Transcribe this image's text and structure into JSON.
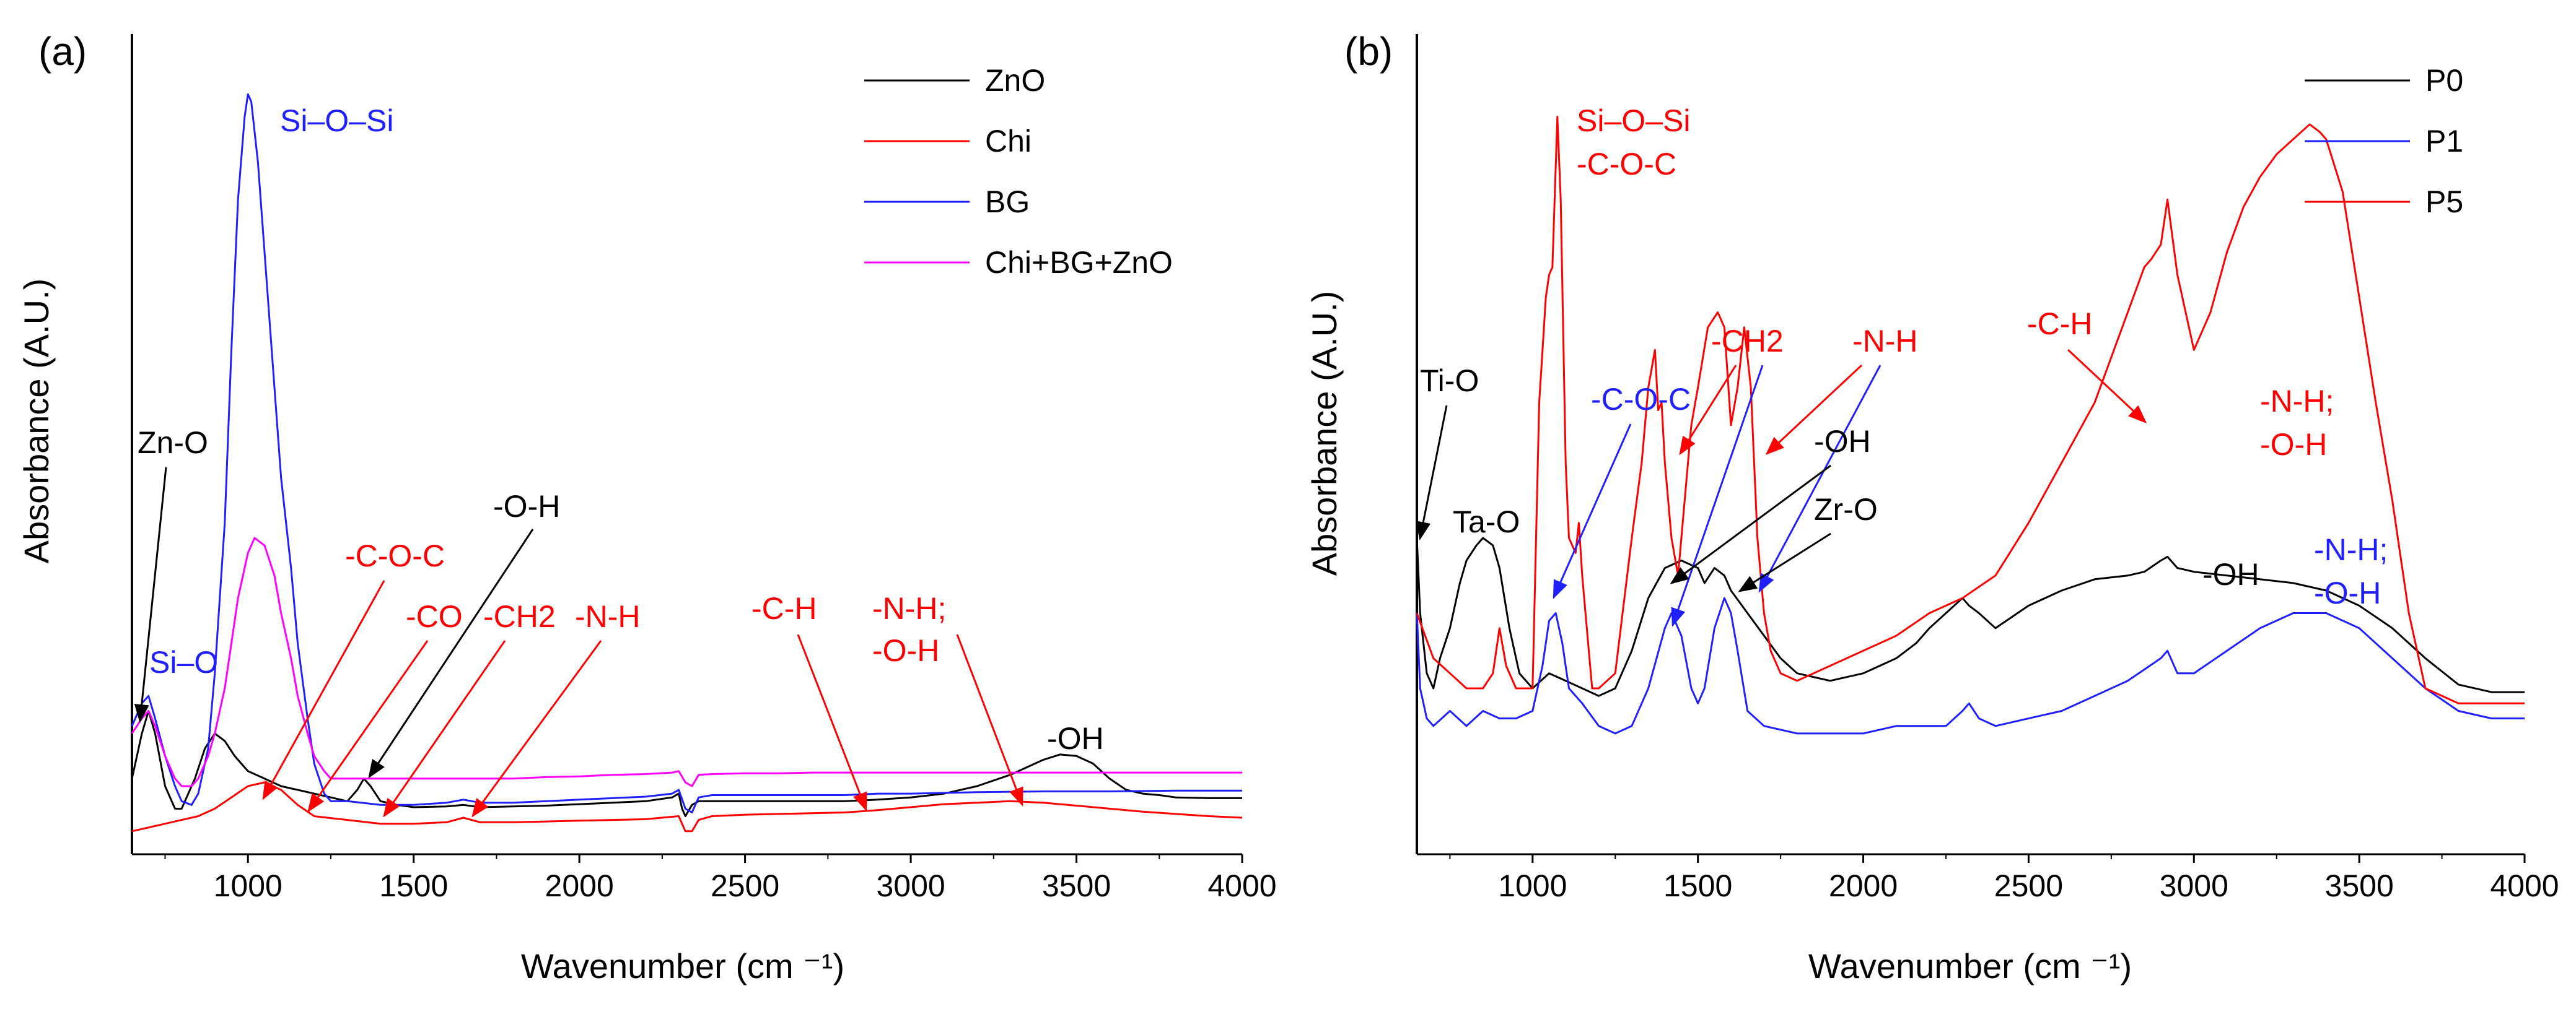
{
  "colors": {
    "black": "#000000",
    "red": "#ff0000",
    "blue": "#2020ff",
    "magenta": "#ff00ff"
  },
  "chart_data": [
    {
      "type": "line",
      "panel_label": "(a)",
      "xlabel": "Wavenumber (cm ⁻¹)",
      "ylabel": "Absorbance (A.U.)",
      "xlim": [
        650,
        4000
      ],
      "ylim": [
        0,
        100
      ],
      "xticks": [
        "1000",
        "1500",
        "2000",
        "2500",
        "3000",
        "3500",
        "4000"
      ],
      "legend_position": "top-right",
      "series": [
        {
          "name": "ZnO",
          "color": "#000000",
          "x": [
            650,
            680,
            700,
            720,
            750,
            780,
            800,
            840,
            870,
            900,
            930,
            960,
            1000,
            1050,
            1100,
            1150,
            1200,
            1250,
            1300,
            1330,
            1350,
            1370,
            1400,
            1450,
            1500,
            1600,
            1650,
            1700,
            1800,
            1900,
            2000,
            2100,
            2200,
            2280,
            2300,
            2310,
            2320,
            2340,
            2360,
            2400,
            2500,
            2600,
            2700,
            2800,
            2900,
            3000,
            3100,
            3200,
            3300,
            3400,
            3450,
            3500,
            3550,
            3600,
            3650,
            3700,
            3750,
            3800,
            3900,
            4000
          ],
          "y": [
            8,
            14,
            17,
            14,
            7,
            4,
            4,
            8,
            12,
            14,
            13,
            11,
            9,
            8,
            7,
            6.5,
            6,
            5.5,
            5,
            6.5,
            8,
            7,
            5,
            4.5,
            4.2,
            4.3,
            4.5,
            4.2,
            4.3,
            4.4,
            4.6,
            4.8,
            5,
            5.5,
            6,
            4,
            3,
            4.5,
            5,
            5,
            5,
            5,
            5,
            5,
            5.2,
            5.5,
            6,
            7,
            8.5,
            10.5,
            11.2,
            11,
            10,
            8,
            6.5,
            6,
            5.8,
            5.5,
            5.4,
            5.4
          ]
        },
        {
          "name": "Chi",
          "color": "#ff0000",
          "x": [
            650,
            700,
            750,
            800,
            850,
            900,
            950,
            1000,
            1050,
            1100,
            1150,
            1200,
            1300,
            1400,
            1500,
            1600,
            1650,
            1700,
            1800,
            1900,
            2000,
            2100,
            2200,
            2300,
            2320,
            2340,
            2360,
            2400,
            2500,
            2600,
            2700,
            2800,
            2900,
            3000,
            3100,
            3200,
            3300,
            3400,
            3500,
            3600,
            3700,
            3800,
            3900,
            4000
          ],
          "y": [
            1,
            1.5,
            2,
            2.5,
            3,
            4,
            5.5,
            7,
            7.5,
            6.5,
            4.5,
            3,
            2.5,
            2,
            2,
            2.2,
            2.8,
            2.2,
            2.2,
            2.3,
            2.4,
            2.5,
            2.6,
            3,
            1,
            1,
            2.5,
            3,
            3.2,
            3.3,
            3.4,
            3.5,
            3.8,
            4.2,
            4.6,
            4.8,
            5,
            4.8,
            4.4,
            4,
            3.6,
            3.3,
            3,
            2.8
          ]
        },
        {
          "name": "BG",
          "color": "#2020ff",
          "x": [
            650,
            680,
            700,
            720,
            750,
            780,
            800,
            830,
            850,
            880,
            900,
            930,
            950,
            970,
            990,
            1000,
            1010,
            1030,
            1050,
            1080,
            1100,
            1130,
            1150,
            1180,
            1200,
            1230,
            1250,
            1300,
            1400,
            1500,
            1600,
            1650,
            1700,
            1800,
            1900,
            2000,
            2100,
            2200,
            2280,
            2300,
            2320,
            2340,
            2360,
            2400,
            2500,
            2600,
            2700,
            2800,
            2900,
            3000,
            3200,
            3400,
            3600,
            3800,
            4000
          ],
          "y": [
            15,
            18,
            19,
            16,
            11,
            7,
            5,
            4.5,
            6,
            12,
            22,
            42,
            65,
            85,
            96,
            99,
            98,
            90,
            78,
            60,
            48,
            36,
            26,
            16,
            10,
            6,
            5,
            5,
            4.5,
            4.5,
            4.8,
            5.2,
            4.8,
            4.8,
            5,
            5.2,
            5.4,
            5.6,
            6,
            6.5,
            4,
            3.5,
            5.5,
            5.8,
            5.8,
            5.8,
            5.8,
            5.8,
            6,
            6,
            6.2,
            6.3,
            6.3,
            6.4,
            6.4
          ]
        },
        {
          "name": "Chi+BG+ZnO",
          "color": "#ff00ff",
          "x": [
            650,
            680,
            700,
            720,
            750,
            780,
            800,
            830,
            850,
            880,
            900,
            930,
            950,
            970,
            1000,
            1020,
            1050,
            1080,
            1100,
            1130,
            1150,
            1180,
            1200,
            1230,
            1250,
            1300,
            1400,
            1500,
            1600,
            1700,
            1800,
            1900,
            2000,
            2100,
            2200,
            2280,
            2300,
            2320,
            2340,
            2360,
            2400,
            2500,
            2600,
            2700,
            2800,
            2900,
            3000,
            3200,
            3400,
            3600,
            3800,
            4000
          ],
          "y": [
            14,
            16,
            17,
            15,
            11,
            8,
            7,
            7,
            8,
            11,
            14,
            20,
            26,
            32,
            38,
            40,
            39,
            35,
            30,
            24,
            19,
            14,
            11,
            9,
            8,
            8,
            8,
            8,
            8,
            8,
            8,
            8.2,
            8.3,
            8.5,
            8.6,
            8.8,
            9,
            7.5,
            7,
            8.5,
            8.6,
            8.7,
            8.7,
            8.8,
            8.8,
            8.8,
            8.8,
            8.8,
            8.8,
            8.8,
            8.8,
            8.8
          ]
        }
      ],
      "annotations": [
        {
          "text": "Zn-O",
          "color": "#000000"
        },
        {
          "text": "Si–O",
          "color": "#2020ff"
        },
        {
          "text": "Si–O–Si",
          "color": "#2020ff"
        },
        {
          "text": "-O-H",
          "color": "#000000"
        },
        {
          "text": "-C-O-C",
          "color": "#ff0000"
        },
        {
          "text": "-CO",
          "color": "#ff0000"
        },
        {
          "text": "-CH2",
          "color": "#ff0000"
        },
        {
          "text": "-N-H",
          "color": "#ff0000"
        },
        {
          "text": "-C-H",
          "color": "#ff0000"
        },
        {
          "text": "-N-H;",
          "color": "#ff0000"
        },
        {
          "text": "-O-H",
          "color": "#ff0000"
        },
        {
          "text": "-OH",
          "color": "#000000"
        }
      ]
    },
    {
      "type": "line",
      "panel_label": "(b)",
      "xlabel": "Wavenumber (cm ⁻¹)",
      "ylabel": "Absorbance (A.U.)",
      "xlim": [
        650,
        4000
      ],
      "ylim": [
        0,
        100
      ],
      "xticks": [
        "1000",
        "1500",
        "2000",
        "2500",
        "3000",
        "3500",
        "4000"
      ],
      "legend_position": "top-right",
      "series": [
        {
          "name": "P0",
          "color": "#000000",
          "x": [
            650,
            660,
            680,
            700,
            720,
            750,
            780,
            800,
            830,
            850,
            880,
            900,
            930,
            960,
            1000,
            1050,
            1100,
            1150,
            1200,
            1250,
            1300,
            1350,
            1400,
            1450,
            1500,
            1520,
            1550,
            1580,
            1600,
            1650,
            1700,
            1750,
            1800,
            1900,
            2000,
            2100,
            2160,
            2200,
            2250,
            2300,
            2320,
            2350,
            2400,
            2500,
            2600,
            2700,
            2800,
            2850,
            2900,
            2920,
            2950,
            3000,
            3100,
            3200,
            3300,
            3400,
            3500,
            3600,
            3700,
            3800,
            3900,
            4000
          ],
          "y": [
            40,
            30,
            22,
            20,
            24,
            28,
            34,
            37,
            39,
            40,
            39,
            36,
            28,
            22,
            20,
            22,
            21,
            20,
            19,
            20,
            25,
            32,
            36,
            37,
            36,
            34,
            36,
            35,
            33,
            30,
            27,
            24,
            22,
            21,
            22,
            24,
            26,
            28,
            30,
            32,
            31,
            30,
            28,
            31,
            33,
            34.5,
            35,
            35.5,
            37,
            37.5,
            36,
            35.5,
            35,
            34.5,
            34,
            33,
            31,
            28,
            24,
            20.5,
            19.5,
            19.5
          ]
        },
        {
          "name": "P1",
          "color": "#2020ff",
          "x": [
            650,
            660,
            680,
            700,
            750,
            800,
            850,
            900,
            950,
            1000,
            1030,
            1050,
            1070,
            1090,
            1110,
            1150,
            1200,
            1250,
            1300,
            1350,
            1400,
            1420,
            1450,
            1480,
            1500,
            1520,
            1550,
            1580,
            1600,
            1620,
            1650,
            1700,
            1800,
            1900,
            2000,
            2100,
            2200,
            2250,
            2300,
            2320,
            2350,
            2400,
            2500,
            2600,
            2700,
            2800,
            2900,
            2920,
            2950,
            3000,
            3100,
            3200,
            3300,
            3400,
            3500,
            3600,
            3700,
            3800,
            3900,
            4000
          ],
          "y": [
            30,
            20,
            16,
            15,
            17,
            15,
            17,
            16,
            16,
            17,
            23,
            29,
            30,
            26,
            20,
            18,
            15,
            14,
            15,
            20,
            28,
            30,
            27,
            20,
            18,
            20,
            28,
            32,
            30,
            25,
            17,
            15,
            14,
            14,
            14,
            15,
            15,
            15,
            17,
            18,
            16,
            15,
            16,
            17,
            19,
            21,
            24,
            25,
            22,
            22,
            25,
            28,
            30,
            30,
            28,
            24,
            20,
            17,
            16,
            16
          ]
        },
        {
          "name": "P5",
          "color": "#ff0000",
          "x": [
            650,
            700,
            750,
            800,
            850,
            880,
            900,
            920,
            950,
            1000,
            1020,
            1040,
            1050,
            1060,
            1075,
            1085,
            1100,
            1110,
            1130,
            1140,
            1150,
            1160,
            1180,
            1200,
            1250,
            1300,
            1330,
            1350,
            1370,
            1380,
            1390,
            1400,
            1420,
            1440,
            1460,
            1480,
            1500,
            1530,
            1560,
            1580,
            1600,
            1620,
            1640,
            1660,
            1680,
            1700,
            1720,
            1750,
            1800,
            1900,
            2000,
            2100,
            2200,
            2300,
            2400,
            2500,
            2600,
            2700,
            2800,
            2850,
            2870,
            2900,
            2920,
            2950,
            3000,
            3050,
            3100,
            3150,
            3200,
            3250,
            3300,
            3350,
            3380,
            3400,
            3450,
            3500,
            3550,
            3600,
            3650,
            3700,
            3800,
            3900,
            4000
          ],
          "y": [
            30,
            24,
            22,
            20,
            20,
            22,
            28,
            23,
            20,
            20,
            58,
            72,
            75,
            76,
            96,
            85,
            50,
            40,
            38,
            42,
            35,
            30,
            20,
            20,
            22,
            40,
            50,
            60,
            65,
            57,
            58,
            50,
            40,
            35,
            45,
            55,
            60,
            68,
            70,
            68,
            55,
            60,
            68,
            60,
            40,
            30,
            25,
            22,
            21,
            23,
            25,
            27,
            30,
            32,
            35,
            42,
            50,
            58,
            70,
            76,
            77,
            79,
            85,
            75,
            65,
            70,
            78,
            84,
            88,
            91,
            93,
            95,
            94,
            93,
            86,
            72,
            58,
            45,
            30,
            20,
            18,
            18,
            18
          ]
        }
      ],
      "annotations": [
        {
          "text": "Ti-O",
          "color": "#000000"
        },
        {
          "text": "Ta-O",
          "color": "#000000"
        },
        {
          "text": "Si–O–Si",
          "color": "#ff0000"
        },
        {
          "text": "-C-O-C",
          "color": "#ff0000"
        },
        {
          "text": "-C-O-C",
          "color": "#2020ff"
        },
        {
          "text": "-CH2",
          "color": "#ff0000"
        },
        {
          "text": "-N-H",
          "color": "#ff0000"
        },
        {
          "text": "-OH",
          "color": "#000000"
        },
        {
          "text": "Zr-O",
          "color": "#000000"
        },
        {
          "text": "-C-H",
          "color": "#ff0000"
        },
        {
          "text": "-N-H;",
          "color": "#ff0000"
        },
        {
          "text": "-O-H",
          "color": "#ff0000"
        },
        {
          "text": "-OH",
          "color": "#000000"
        },
        {
          "text": "-N-H;",
          "color": "#2020ff"
        },
        {
          "text": "-O-H",
          "color": "#2020ff"
        }
      ]
    }
  ]
}
